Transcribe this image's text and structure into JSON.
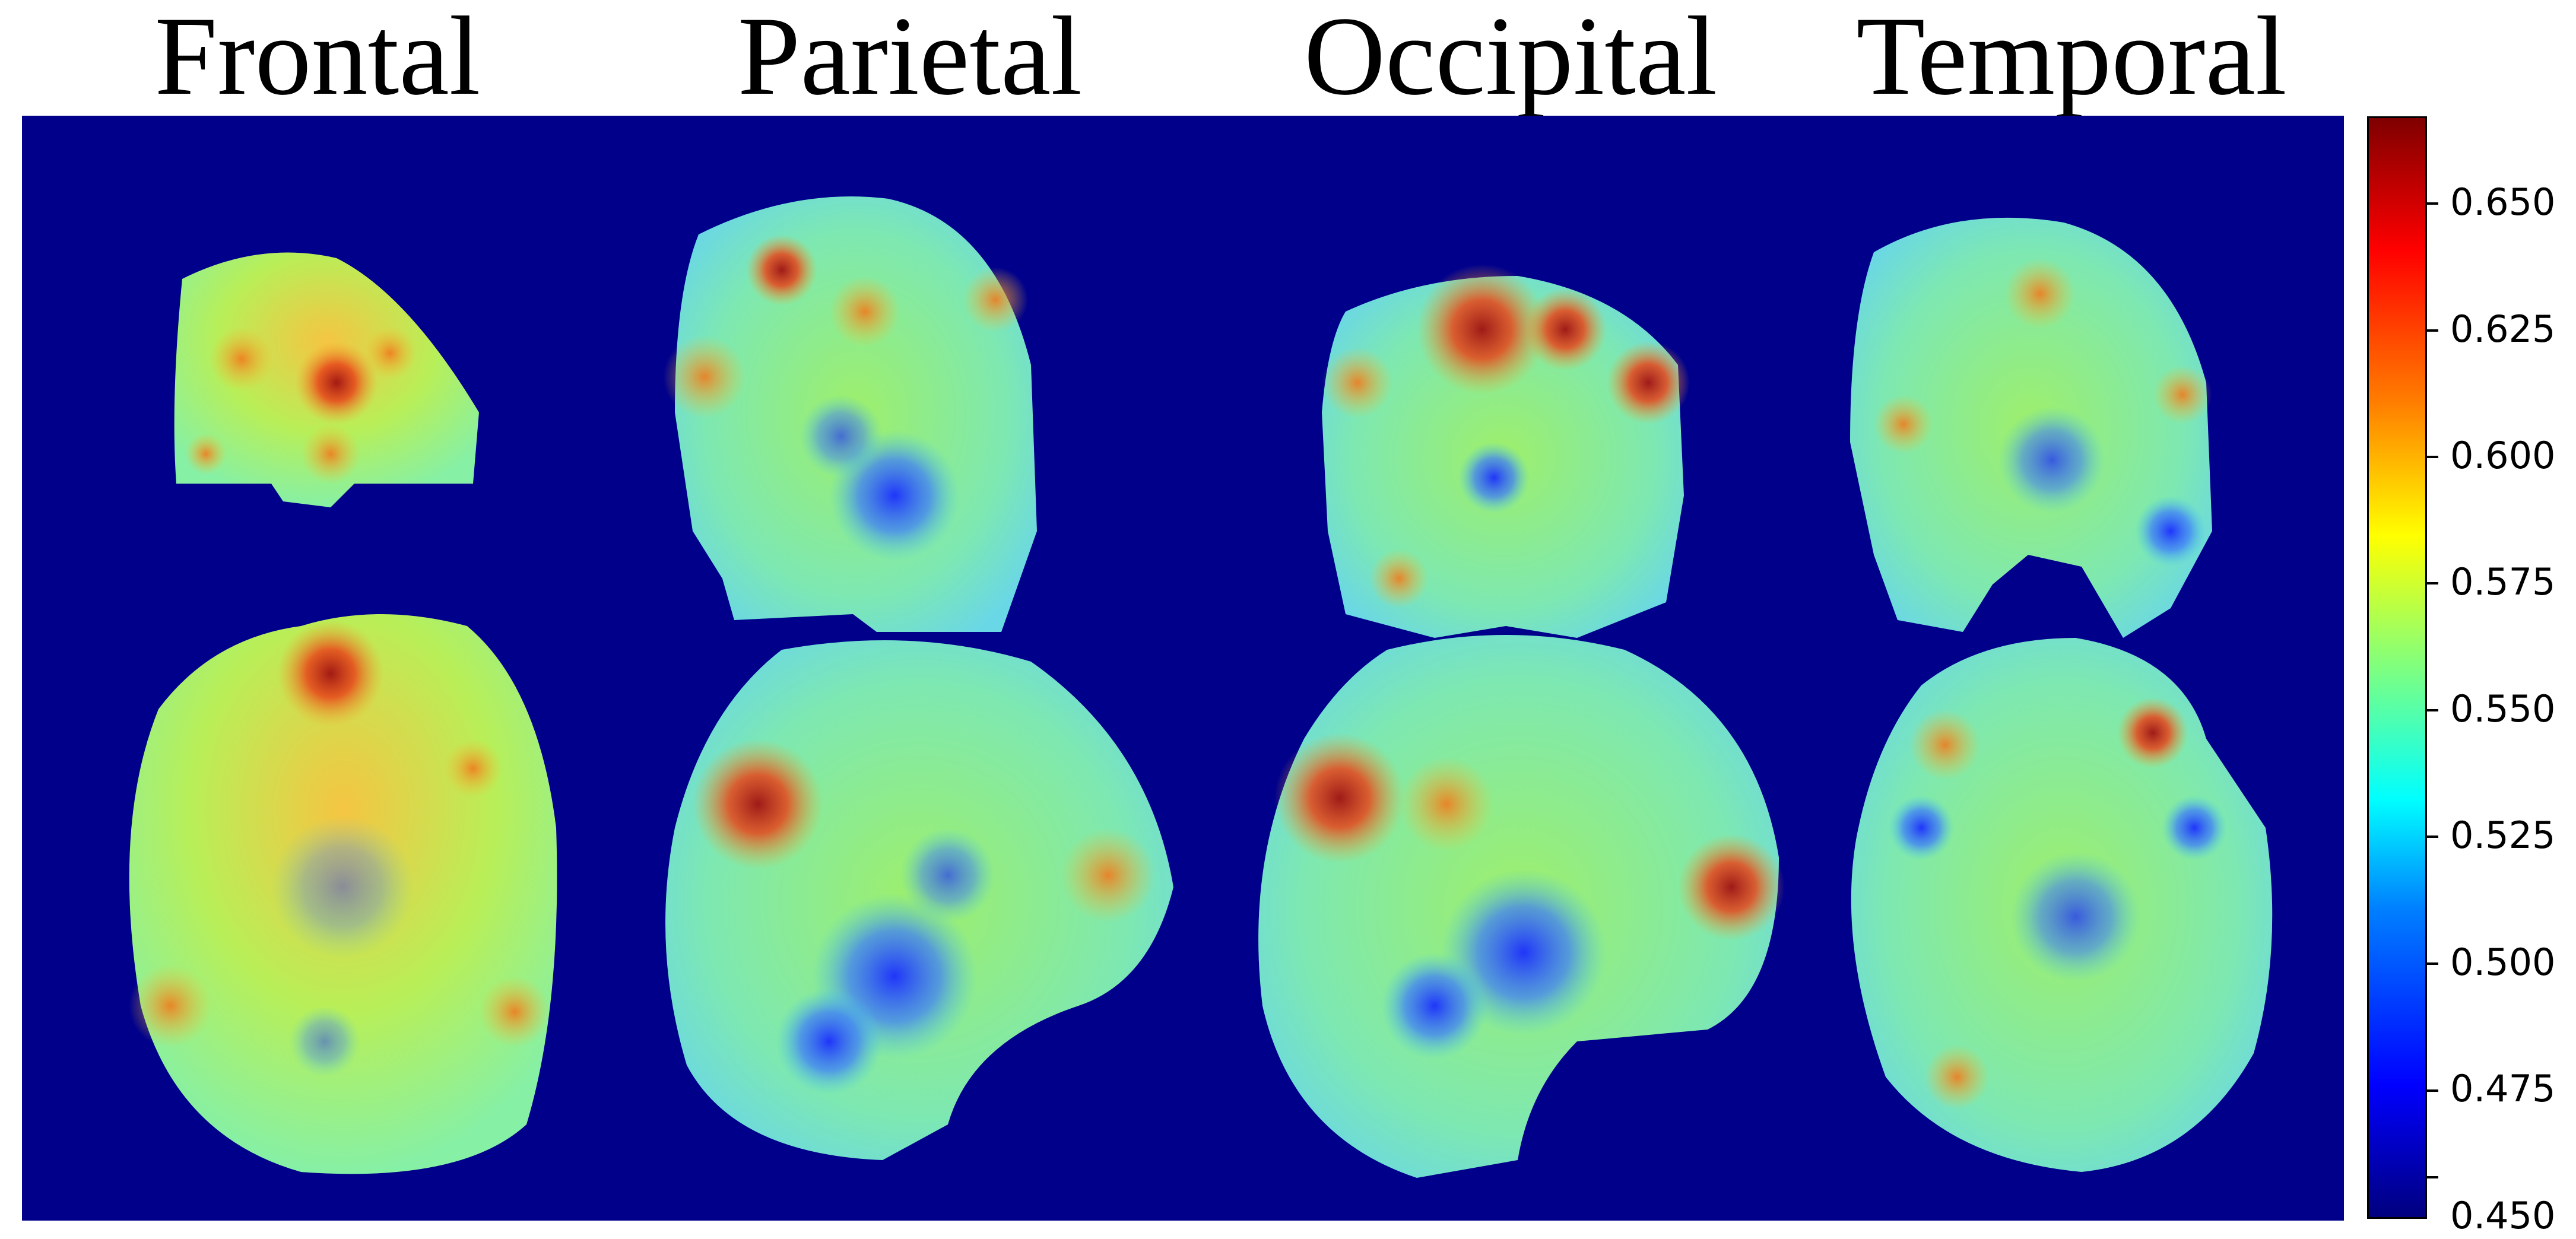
{
  "titles": [
    "Frontal",
    "Parietal",
    "Occipital",
    "Temporal"
  ],
  "colorbar": {
    "colormap": "jet",
    "min": 0.45,
    "max": 0.665,
    "ticks": [
      "0.450",
      "0.475",
      "0.500",
      "0.525",
      "0.550",
      "0.575",
      "0.600",
      "0.625",
      "0.650"
    ]
  },
  "colors": {
    "background": "#00008b"
  }
}
